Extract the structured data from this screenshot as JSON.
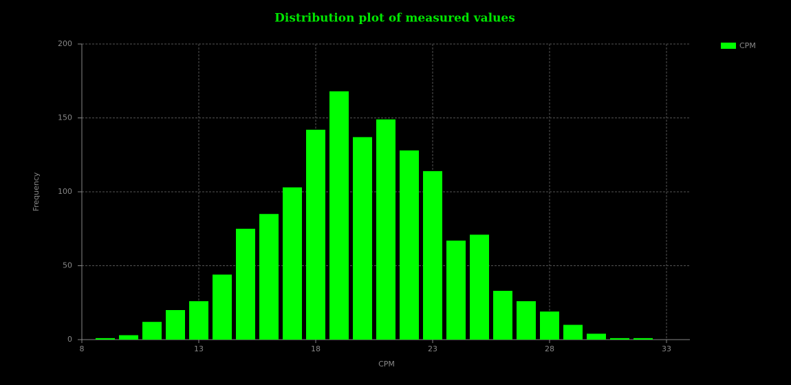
{
  "chart_data": {
    "type": "histogram",
    "title": "Distribution plot of measured values",
    "x_label": "CPM",
    "y_label": "Frequency",
    "bins": [
      8.5,
      9.5,
      10.5,
      11.5,
      12.5,
      13.5,
      14.5,
      15.5,
      16.5,
      17.5,
      18.5,
      19.5,
      20.5,
      21.5,
      22.5,
      23.5,
      24.5,
      25.5,
      26.5,
      27.5,
      28.5,
      29.5,
      30.5,
      31.5,
      32.5
    ],
    "series": [
      {
        "name": "CPM",
        "color": "#00ff00",
        "values": [
          1,
          3,
          12,
          20,
          26,
          44,
          75,
          85,
          103,
          142,
          168,
          137,
          149,
          128,
          114,
          67,
          71,
          33,
          26,
          19,
          10,
          4,
          1,
          1
        ]
      }
    ],
    "xlim": [
      8,
      34
    ],
    "xticks": [
      8,
      13,
      18,
      23,
      28,
      33
    ],
    "ylim": [
      0,
      200
    ],
    "yticks": [
      0,
      50,
      100,
      150,
      200
    ],
    "grid": true,
    "legend": "top-right"
  }
}
